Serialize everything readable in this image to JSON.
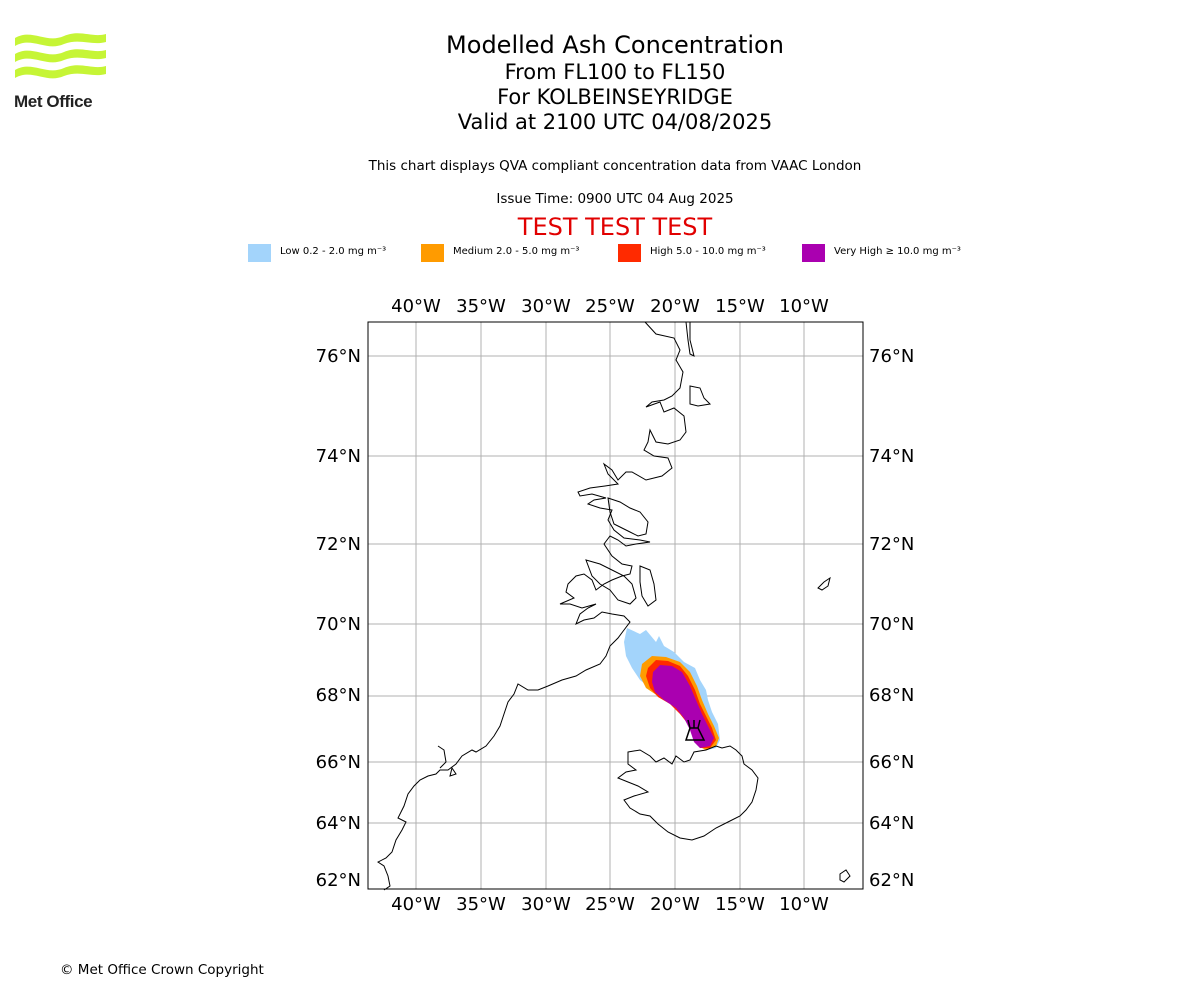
{
  "logo": {
    "text": "Met Office",
    "color": "#c6f536"
  },
  "title": {
    "line1": "Modelled Ash Concentration",
    "line2": "From FL100 to FL150",
    "line3": "For KOLBEINSEYRIDGE",
    "line4": "Valid at 2100 UTC 04/08/2025"
  },
  "subtitle": "This chart displays QVA compliant concentration data from VAAC London",
  "issue_time": "Issue Time: 0900 UTC 04 Aug 2025",
  "test_banner": "TEST TEST TEST",
  "legend": [
    {
      "label": "Low 0.2 - 2.0 mg m⁻³",
      "color": "#a3d4fb"
    },
    {
      "label": "Medium 2.0 - 5.0 mg m⁻³",
      "color": "#ff9b00"
    },
    {
      "label": "High 5.0 - 10.0 mg m⁻³",
      "color": "#ff2a00"
    },
    {
      "label": "Very High ≥ 10.0 mg m⁻³",
      "color": "#aa00b0"
    }
  ],
  "map": {
    "lon_ticks": [
      "40°W",
      "35°W",
      "30°W",
      "25°W",
      "20°W",
      "15°W",
      "10°W"
    ],
    "lat_ticks": [
      "76°N",
      "74°N",
      "72°N",
      "70°N",
      "68°N",
      "66°N",
      "64°N",
      "62°N"
    ],
    "volcano_icon": "volcano-icon"
  },
  "copyright": "© Met Office Crown Copyright"
}
